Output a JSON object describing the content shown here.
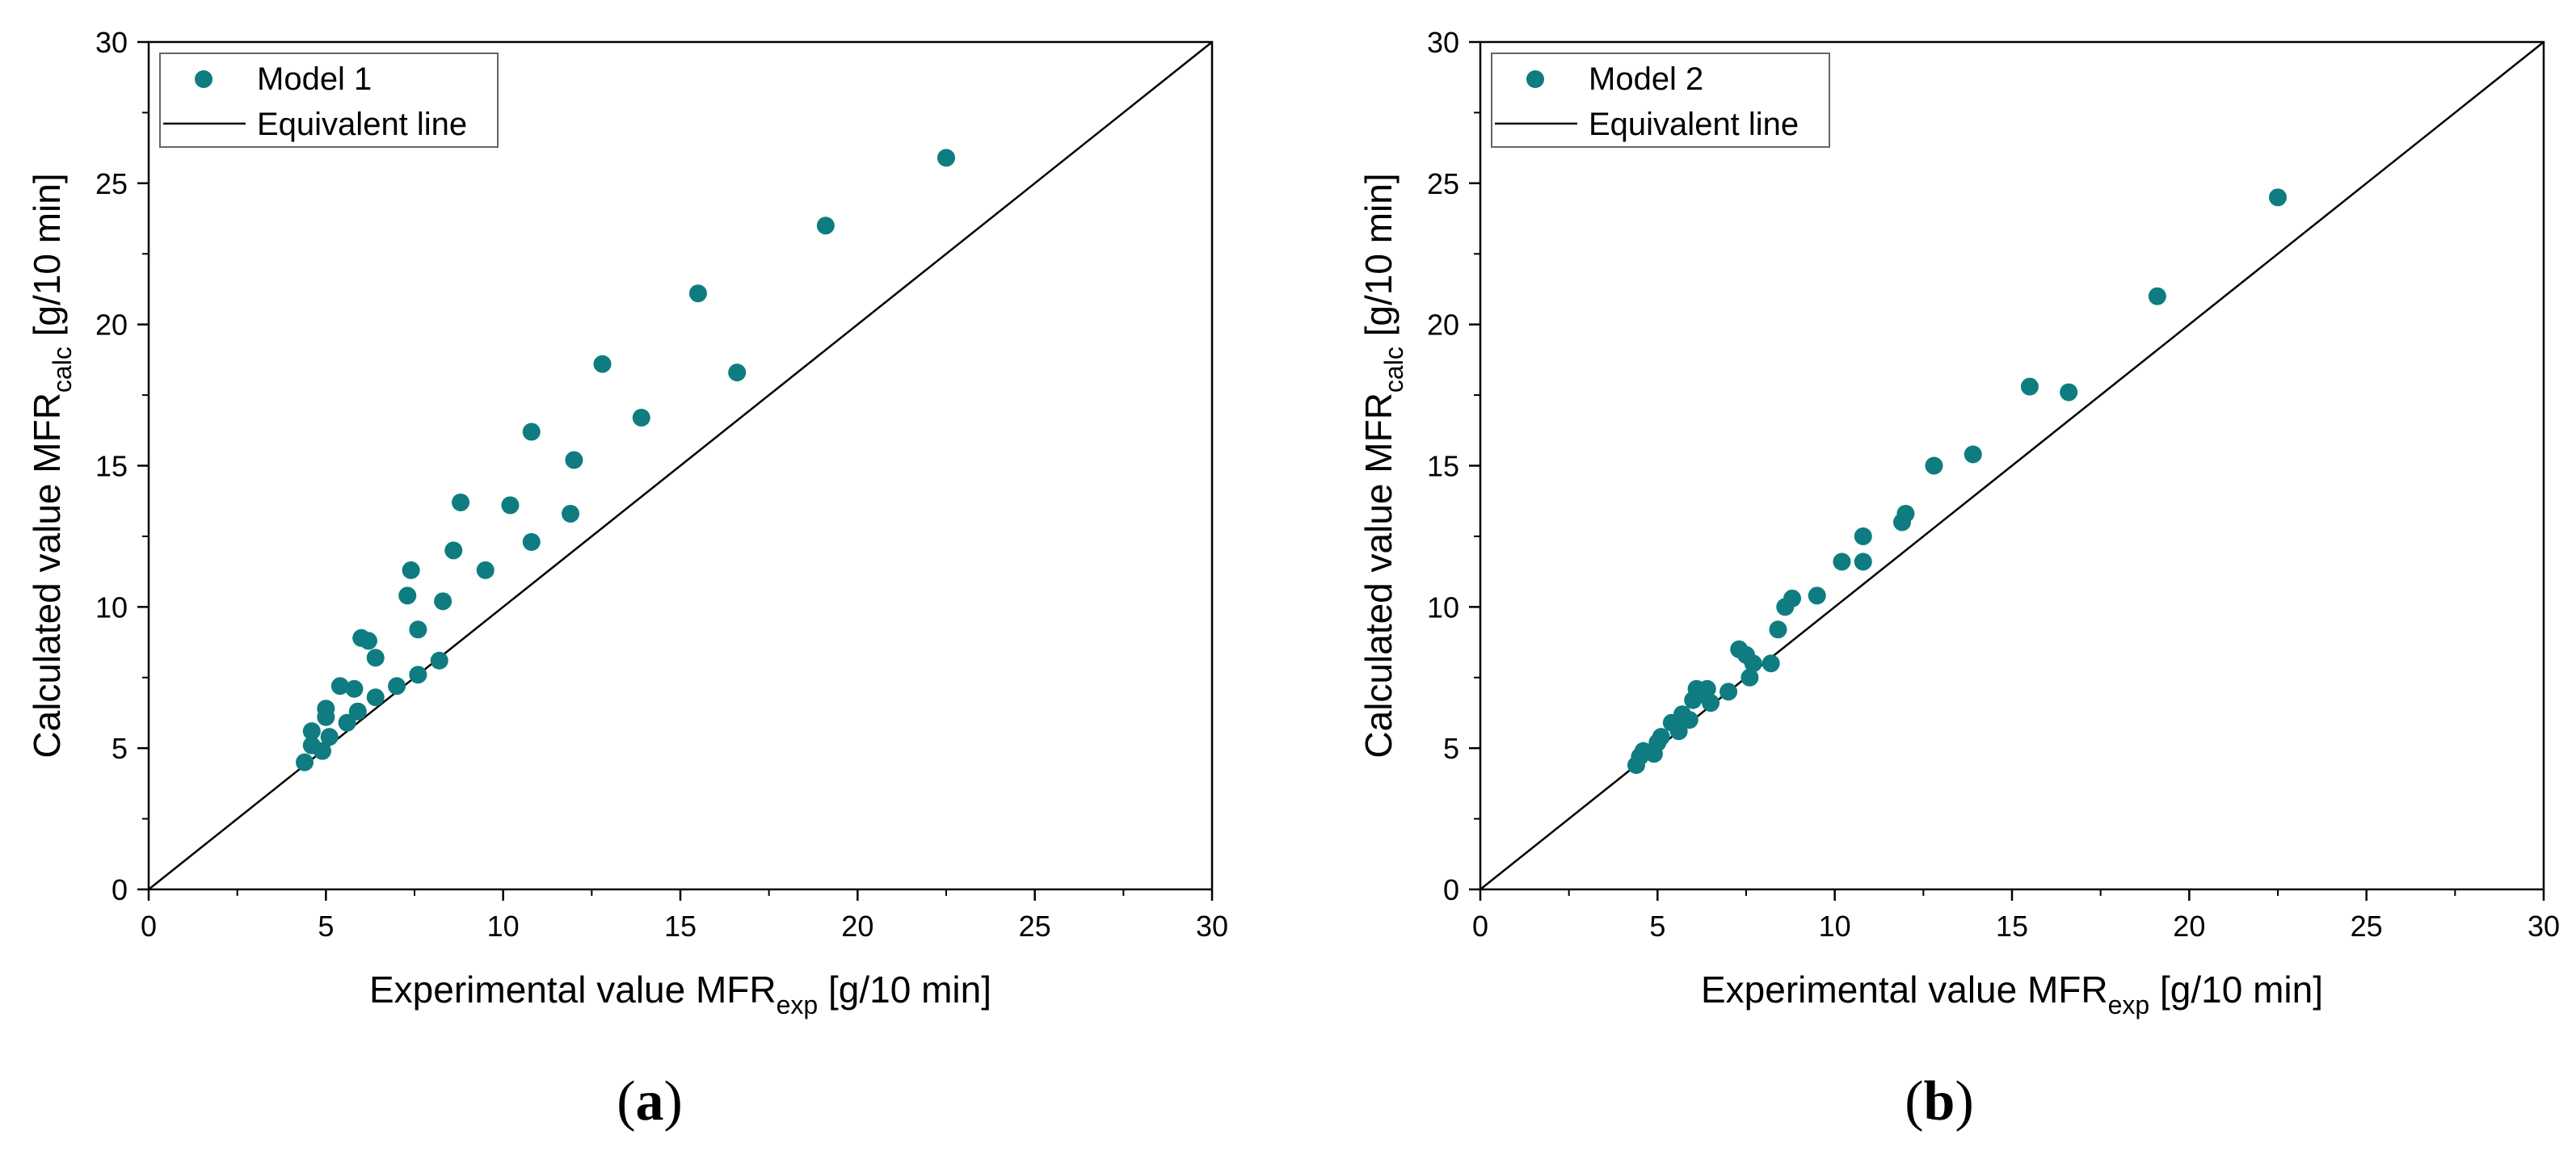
{
  "colors": {
    "marker": "#0e7c80",
    "line": "#000000",
    "axis": "#000000"
  },
  "chart_data": [
    {
      "type": "scatter",
      "panel_label_parts": [
        "(",
        "a",
        ")"
      ],
      "xlabel_parts": [
        "Experimental value MFR",
        "exp",
        " [g/10 min]"
      ],
      "ylabel_parts": [
        "Calculated value MFR",
        "calc",
        " [g/10 min]"
      ],
      "xlim": [
        0,
        30
      ],
      "ylim": [
        0,
        30
      ],
      "xticks": [
        "0",
        "5",
        "10",
        "15",
        "20",
        "25",
        "30"
      ],
      "yticks": [
        "0",
        "5",
        "10",
        "15",
        "20",
        "25",
        "30"
      ],
      "legend": [
        "Model 1",
        "Equivalent line"
      ],
      "legend_position": "top-left",
      "series": [
        {
          "name": "Model 1",
          "points": [
            [
              4.4,
              4.5
            ],
            [
              4.6,
              5.1
            ],
            [
              4.6,
              5.6
            ],
            [
              4.9,
              4.9
            ],
            [
              5.0,
              6.1
            ],
            [
              5.0,
              6.4
            ],
            [
              5.1,
              5.4
            ],
            [
              5.4,
              7.2
            ],
            [
              5.6,
              5.9
            ],
            [
              5.8,
              7.1
            ],
            [
              5.9,
              6.3
            ],
            [
              6.0,
              8.9
            ],
            [
              6.2,
              8.8
            ],
            [
              6.4,
              6.8
            ],
            [
              6.4,
              8.2
            ],
            [
              7.0,
              7.2
            ],
            [
              7.3,
              10.4
            ],
            [
              7.4,
              11.3
            ],
            [
              7.6,
              7.6
            ],
            [
              7.6,
              9.2
            ],
            [
              8.2,
              8.1
            ],
            [
              8.3,
              10.2
            ],
            [
              8.6,
              12.0
            ],
            [
              8.8,
              13.7
            ],
            [
              9.5,
              11.3
            ],
            [
              10.2,
              13.6
            ],
            [
              10.8,
              16.2
            ],
            [
              10.8,
              12.3
            ],
            [
              11.9,
              13.3
            ],
            [
              12.0,
              15.2
            ],
            [
              12.8,
              18.6
            ],
            [
              13.9,
              16.7
            ],
            [
              15.5,
              21.1
            ],
            [
              16.6,
              18.3
            ],
            [
              19.1,
              23.5
            ],
            [
              22.5,
              25.9
            ]
          ]
        },
        {
          "name": "Equivalent line",
          "line": [
            [
              0,
              0
            ],
            [
              30,
              30
            ]
          ]
        }
      ]
    },
    {
      "type": "scatter",
      "panel_label_parts": [
        "(",
        "b",
        ")"
      ],
      "xlabel_parts": [
        "Experimental value MFR",
        "exp",
        " [g/10 min]"
      ],
      "ylabel_parts": [
        "Calculated value MFR",
        "calc",
        " [g/10 min]"
      ],
      "xlim": [
        0,
        30
      ],
      "ylim": [
        0,
        30
      ],
      "xticks": [
        "0",
        "5",
        "10",
        "15",
        "20",
        "25",
        "30"
      ],
      "yticks": [
        "0",
        "5",
        "10",
        "15",
        "20",
        "25",
        "30"
      ],
      "legend": [
        "Model 2",
        "Equivalent line"
      ],
      "legend_position": "top-left",
      "series": [
        {
          "name": "Model 2",
          "points": [
            [
              4.4,
              4.4
            ],
            [
              4.5,
              4.7
            ],
            [
              4.6,
              4.9
            ],
            [
              4.9,
              4.8
            ],
            [
              5.0,
              5.2
            ],
            [
              5.1,
              5.4
            ],
            [
              5.4,
              5.9
            ],
            [
              5.6,
              5.6
            ],
            [
              5.7,
              6.2
            ],
            [
              5.9,
              6.0
            ],
            [
              6.0,
              6.7
            ],
            [
              6.1,
              7.1
            ],
            [
              6.3,
              6.9
            ],
            [
              6.4,
              7.1
            ],
            [
              6.5,
              6.6
            ],
            [
              7.0,
              7.0
            ],
            [
              7.3,
              8.5
            ],
            [
              7.5,
              8.3
            ],
            [
              7.6,
              7.5
            ],
            [
              7.7,
              8.0
            ],
            [
              8.2,
              8.0
            ],
            [
              8.4,
              9.2
            ],
            [
              8.6,
              10.0
            ],
            [
              8.8,
              10.3
            ],
            [
              9.5,
              10.4
            ],
            [
              10.2,
              11.6
            ],
            [
              10.8,
              11.6
            ],
            [
              10.8,
              12.5
            ],
            [
              11.9,
              13.0
            ],
            [
              12.0,
              13.3
            ],
            [
              12.8,
              15.0
            ],
            [
              13.9,
              15.4
            ],
            [
              15.5,
              17.8
            ],
            [
              16.6,
              17.6
            ],
            [
              19.1,
              21.0
            ],
            [
              22.5,
              24.5
            ]
          ]
        },
        {
          "name": "Equivalent line",
          "line": [
            [
              0,
              0
            ],
            [
              30,
              30
            ]
          ]
        }
      ]
    }
  ]
}
